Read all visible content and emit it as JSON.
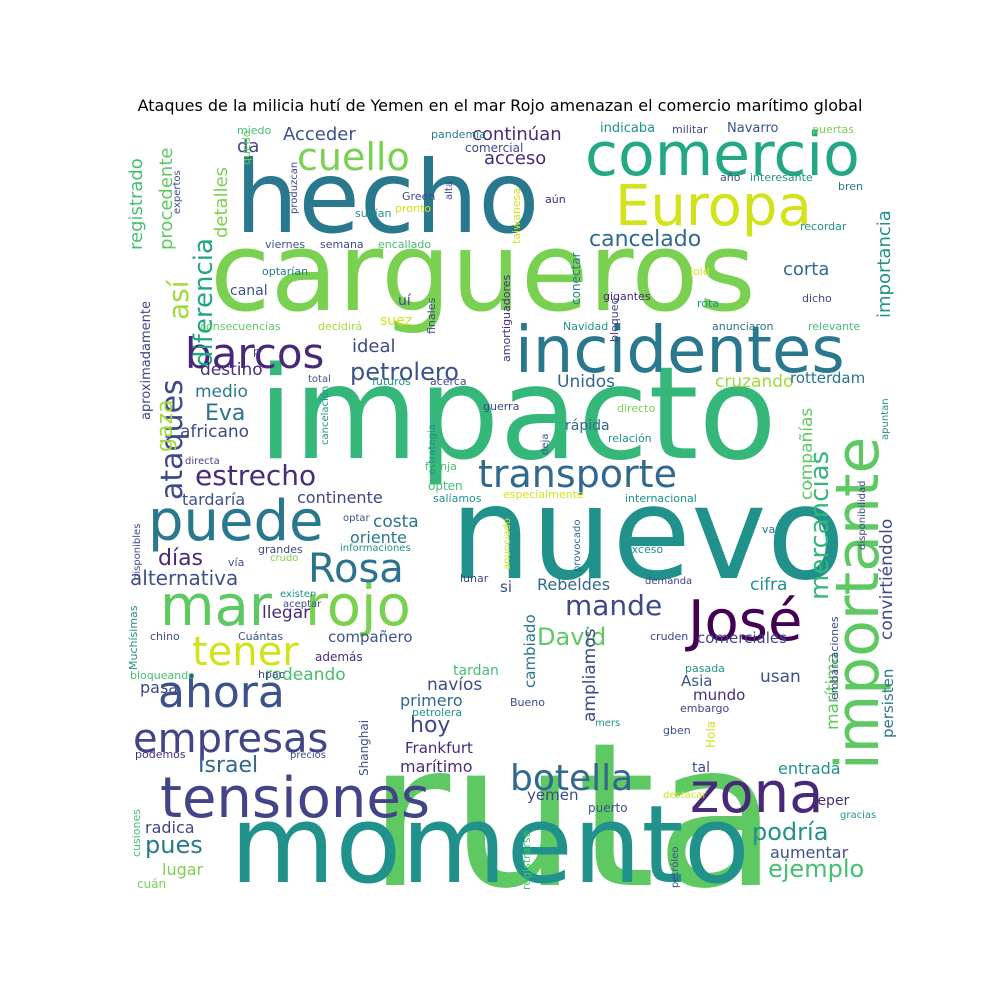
{
  "title": "Ataques de la milicia hutí de Yemen en el mar Rojo amenazan el comercio marítimo global",
  "words": [
    {
      "text": "ruta",
      "color": "#5ec962"
    },
    {
      "text": "momento",
      "color": "#21918c"
    },
    {
      "text": "impacto",
      "color": "#35b779"
    },
    {
      "text": "nuevo",
      "color": "#21918c"
    },
    {
      "text": "cargueros",
      "color": "#7ad151"
    },
    {
      "text": "hecho",
      "color": "#2a788e"
    },
    {
      "text": "comercio",
      "color": "#22a884"
    },
    {
      "text": "incidentes",
      "color": "#2a788e"
    },
    {
      "text": "Europa",
      "color": "#d2e21b"
    },
    {
      "text": "importante",
      "color": "#5ec962"
    },
    {
      "text": "tensiones",
      "color": "#414487"
    },
    {
      "text": "zona",
      "color": "#482878"
    },
    {
      "text": "José",
      "color": "#440154"
    },
    {
      "text": "mar",
      "color": "#5ec962"
    },
    {
      "text": "rojo",
      "color": "#7ad151"
    },
    {
      "text": "puede",
      "color": "#2a788e"
    },
    {
      "text": "ahora",
      "color": "#3b528b"
    },
    {
      "text": "transporte",
      "color": "#31688e"
    },
    {
      "text": "empresas",
      "color": "#414487"
    },
    {
      "text": "botella",
      "color": "#31688e"
    },
    {
      "text": "Rosa",
      "color": "#2c728e"
    },
    {
      "text": "barcos",
      "color": "#482878"
    },
    {
      "text": "cuello",
      "color": "#7ad151"
    },
    {
      "text": "tener",
      "color": "#d2e21b"
    },
    {
      "text": "mande",
      "color": "#3e4989"
    },
    {
      "text": "estrecho",
      "color": "#472d7b"
    },
    {
      "text": "ataques",
      "color": "#3e4989"
    },
    {
      "text": "mercancías",
      "color": "#35b779"
    },
    {
      "text": "petrolero",
      "color": "#3b528b"
    },
    {
      "text": "cancelado",
      "color": "#31688e"
    },
    {
      "text": "así",
      "color": "#9fda3a"
    },
    {
      "text": "diferencia",
      "color": "#21a685"
    },
    {
      "text": "David",
      "color": "#5ec962"
    },
    {
      "text": "podría",
      "color": "#21918c"
    },
    {
      "text": "ejemplo",
      "color": "#44bf70"
    },
    {
      "text": "Israel",
      "color": "#31688e"
    },
    {
      "text": "hoy",
      "color": "#3e4989"
    },
    {
      "text": "pues",
      "color": "#2a788e"
    },
    {
      "text": "alternativa",
      "color": "#3b528b"
    },
    {
      "text": "días",
      "color": "#482878"
    },
    {
      "text": "Eva",
      "color": "#2c728e"
    },
    {
      "text": "gaza",
      "color": "#9fda3a"
    },
    {
      "text": "continúan",
      "color": "#472d7b"
    },
    {
      "text": "Acceder",
      "color": "#3b528b"
    },
    {
      "text": "acceso",
      "color": "#482878"
    },
    {
      "text": "da",
      "color": "#3e4989"
    },
    {
      "text": "corta",
      "color": "#31688e"
    },
    {
      "text": "importancia",
      "color": "#21918c"
    },
    {
      "text": "registrado",
      "color": "#44bf70"
    },
    {
      "text": "procedente",
      "color": "#5ec962"
    },
    {
      "text": "detalles",
      "color": "#7ad151"
    },
    {
      "text": "ideal",
      "color": "#3e4989"
    },
    {
      "text": "destino",
      "color": "#472d7b"
    },
    {
      "text": "medio",
      "color": "#2a788e"
    },
    {
      "text": "africano",
      "color": "#3e4989"
    },
    {
      "text": "cruzando",
      "color": "#9fda3a"
    },
    {
      "text": "rotterdam",
      "color": "#2c728e"
    },
    {
      "text": "Unidos",
      "color": "#31688e"
    },
    {
      "text": "compañías",
      "color": "#5ec962"
    },
    {
      "text": "tardaría",
      "color": "#3b528b"
    },
    {
      "text": "continente",
      "color": "#414487"
    },
    {
      "text": "costa",
      "color": "#2c728e"
    },
    {
      "text": "oriente",
      "color": "#2a788e"
    },
    {
      "text": "convirtiéndolo",
      "color": "#3e4989"
    },
    {
      "text": "cifra",
      "color": "#21918c"
    },
    {
      "text": "llegar",
      "color": "#482878"
    },
    {
      "text": "Rebeldes",
      "color": "#31688e"
    },
    {
      "text": "si",
      "color": "#3e4989"
    },
    {
      "text": "compañero",
      "color": "#3b528b"
    },
    {
      "text": "rodeando",
      "color": "#44bf70"
    },
    {
      "text": "pasa",
      "color": "#414487"
    },
    {
      "text": "navíos",
      "color": "#3e4989"
    },
    {
      "text": "primero",
      "color": "#31688e"
    },
    {
      "text": "cambiado",
      "color": "#2a788e"
    },
    {
      "text": "ampliamos",
      "color": "#3e4989"
    },
    {
      "text": "comerciales",
      "color": "#414487"
    },
    {
      "text": "usan",
      "color": "#3b528b"
    },
    {
      "text": "mundo",
      "color": "#472d7b"
    },
    {
      "text": "Asia",
      "color": "#3b528b"
    },
    {
      "text": "marítima",
      "color": "#5ec962"
    },
    {
      "text": "persisten",
      "color": "#2a788e"
    },
    {
      "text": "entrada",
      "color": "#21918c"
    },
    {
      "text": "Frankfurt",
      "color": "#482878"
    },
    {
      "text": "marítimo",
      "color": "#472d7b"
    },
    {
      "text": "yemen",
      "color": "#3e4989"
    },
    {
      "text": "radica",
      "color": "#414487"
    },
    {
      "text": "lugar",
      "color": "#7ad151"
    },
    {
      "text": "aumentar",
      "color": "#3b528b"
    },
    {
      "text": "reper",
      "color": "#482878"
    },
    {
      "text": "tal",
      "color": "#3e4989"
    },
    {
      "text": "tardan",
      "color": "#44bf70"
    },
    {
      "text": "suez",
      "color": "#d2e21b"
    },
    {
      "text": "uí",
      "color": "#3e4989"
    },
    {
      "text": "canal",
      "color": "#3b528b"
    },
    {
      "text": "aproximadamente",
      "color": "#414487"
    },
    {
      "text": "rápida",
      "color": "#31688e"
    },
    {
      "text": "miedo",
      "color": "#44bf70"
    },
    {
      "text": "quedó",
      "color": "#5ec962"
    },
    {
      "text": "pandemia",
      "color": "#2a788e"
    },
    {
      "text": "comercial",
      "color": "#3e4989"
    },
    {
      "text": "indicaba",
      "color": "#21918c"
    },
    {
      "text": "militar",
      "color": "#3e4989"
    },
    {
      "text": "Navarro",
      "color": "#3b528b"
    },
    {
      "text": "puertas",
      "color": "#7ad151"
    },
    {
      "text": "año",
      "color": "#3b528b"
    },
    {
      "text": "interesante",
      "color": "#21918c"
    },
    {
      "text": "bren",
      "color": "#2a788e"
    },
    {
      "text": "Green",
      "color": "#3e4989"
    },
    {
      "text": "pronto",
      "color": "#d2e21b"
    },
    {
      "text": "aún",
      "color": "#482878"
    },
    {
      "text": "alta",
      "color": "#3e4989"
    },
    {
      "text": "produzcan",
      "color": "#414487"
    },
    {
      "text": "expertos",
      "color": "#3e4989"
    },
    {
      "text": "subían",
      "color": "#21918c"
    },
    {
      "text": "taiwanesa",
      "color": "#d2e21b"
    },
    {
      "text": "recordar",
      "color": "#21918c"
    },
    {
      "text": "viernes",
      "color": "#3b528b"
    },
    {
      "text": "semana",
      "color": "#3e4989"
    },
    {
      "text": "encallado",
      "color": "#44bf70"
    },
    {
      "text": "conectar",
      "color": "#2a788e"
    },
    {
      "text": "optarían",
      "color": "#2a788e"
    },
    {
      "text": "amortiguadores",
      "color": "#472d7b"
    },
    {
      "text": "finales",
      "color": "#3e4989"
    },
    {
      "text": "gigantes",
      "color": "#482878"
    },
    {
      "text": "joid",
      "color": "#d2e21b"
    },
    {
      "text": "rota",
      "color": "#21918c"
    },
    {
      "text": "dicho",
      "color": "#3e4989"
    },
    {
      "text": "consecuencias",
      "color": "#5ec962"
    },
    {
      "text": "decidirá",
      "color": "#9fda3a"
    },
    {
      "text": "Navidad",
      "color": "#21918c"
    },
    {
      "text": "bloqueo",
      "color": "#414487"
    },
    {
      "text": "anunciaron",
      "color": "#2c728e"
    },
    {
      "text": "relevante",
      "color": "#44bf70"
    },
    {
      "text": "p",
      "color": "#3e4989"
    },
    {
      "text": "total",
      "color": "#3b528b"
    },
    {
      "text": "futuros",
      "color": "#21918c"
    },
    {
      "text": "acerca",
      "color": "#3e4989"
    },
    {
      "text": "cancelación",
      "color": "#21918c"
    },
    {
      "text": "guerra",
      "color": "#3e4989"
    },
    {
      "text": "directo",
      "color": "#7ad151"
    },
    {
      "text": "estrategia",
      "color": "#21918c"
    },
    {
      "text": "deja",
      "color": "#3b528b"
    },
    {
      "text": "relación",
      "color": "#21918c"
    },
    {
      "text": "apuntan",
      "color": "#21918c"
    },
    {
      "text": "directa",
      "color": "#414487"
    },
    {
      "text": "franja",
      "color": "#44bf70"
    },
    {
      "text": "opten",
      "color": "#44bf70"
    },
    {
      "text": "salíamos",
      "color": "#21918c"
    },
    {
      "text": "especialmente",
      "color": "#d2e21b"
    },
    {
      "text": "internacional",
      "color": "#21918c"
    },
    {
      "text": "disponibles",
      "color": "#3e4989"
    },
    {
      "text": "optar",
      "color": "#3b528b"
    },
    {
      "text": "anunciado",
      "color": "#d2e21b"
    },
    {
      "text": "provocado",
      "color": "#31688e"
    },
    {
      "text": "disponibilidad",
      "color": "#3e4989"
    },
    {
      "text": "va",
      "color": "#2a788e"
    },
    {
      "text": "grandes",
      "color": "#3e4989"
    },
    {
      "text": "informaciones",
      "color": "#21918c"
    },
    {
      "text": "vía",
      "color": "#3b528b"
    },
    {
      "text": "crudo",
      "color": "#7ad151"
    },
    {
      "text": "exceso",
      "color": "#21918c"
    },
    {
      "text": "lunar",
      "color": "#3e4989"
    },
    {
      "text": "demanda",
      "color": "#414487"
    },
    {
      "text": "existen",
      "color": "#21918c"
    },
    {
      "text": "aceptar",
      "color": "#3e4989"
    },
    {
      "text": "Muchísimas",
      "color": "#21918c"
    },
    {
      "text": "chino",
      "color": "#3e4989"
    },
    {
      "text": "Cuántas",
      "color": "#3b528b"
    },
    {
      "text": "cruden",
      "color": "#414487"
    },
    {
      "text": "embarcaciones",
      "color": "#3e4989"
    },
    {
      "text": "además",
      "color": "#472d7b"
    },
    {
      "text": "bloqueando",
      "color": "#44bf70"
    },
    {
      "text": "hpac",
      "color": "#3e4989"
    },
    {
      "text": "pasada",
      "color": "#21918c"
    },
    {
      "text": "embargo",
      "color": "#414487"
    },
    {
      "text": "Bueno",
      "color": "#3e4989"
    },
    {
      "text": "petrolera",
      "color": "#21918c"
    },
    {
      "text": "Shanghai",
      "color": "#3b528b"
    },
    {
      "text": "mers",
      "color": "#21918c"
    },
    {
      "text": "gben",
      "color": "#3b528b"
    },
    {
      "text": "Hola",
      "color": "#d2e21b"
    },
    {
      "text": "podemos",
      "color": "#472d7b"
    },
    {
      "text": "precios",
      "color": "#3e4989"
    },
    {
      "text": "cusiones",
      "color": "#44bf70"
    },
    {
      "text": "puerto",
      "color": "#3b528b"
    },
    {
      "text": "destacar",
      "color": "#d2e21b"
    },
    {
      "text": "gracias",
      "color": "#21918c"
    },
    {
      "text": "registrarse",
      "color": "#44bf70"
    },
    {
      "text": "petróleo",
      "color": "#3b528b"
    },
    {
      "text": "cuán",
      "color": "#7ad151"
    }
  ]
}
